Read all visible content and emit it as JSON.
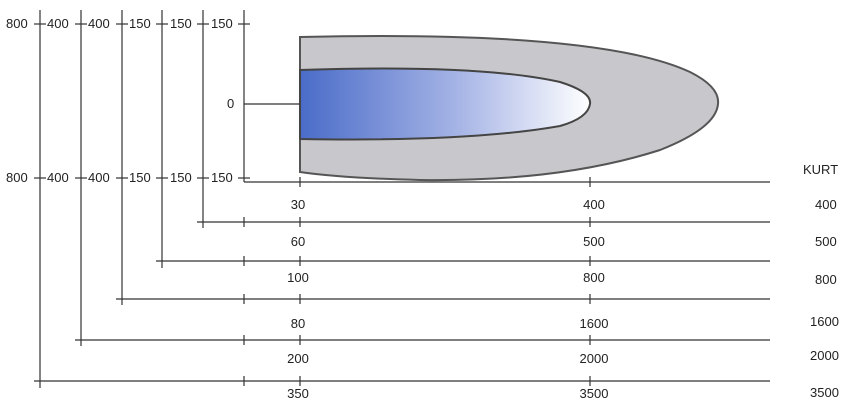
{
  "diagram": {
    "colors": {
      "outer_fill": "#c8c8cc",
      "outline": "#555555",
      "inner_gradient_start": "#4a6cc8",
      "inner_gradient_end": "#ffffff",
      "line": "#333333"
    },
    "top_left_labels": [
      "800",
      "400",
      "400",
      "150",
      "150",
      "150"
    ],
    "mid_left_labels": [
      "800",
      "400",
      "400",
      "150",
      "150",
      "150"
    ],
    "center_label": "0",
    "header_label": "KURT",
    "rows": [
      {
        "near": "30",
        "far": "400",
        "kurt": "400"
      },
      {
        "near": "60",
        "far": "500",
        "kurt": "500"
      },
      {
        "near": "100",
        "far": "800",
        "kurt": "800"
      },
      {
        "near": "80",
        "far": "1600",
        "kurt": "1600"
      },
      {
        "near": "200",
        "far": "2000",
        "kurt": "2000"
      },
      {
        "near": "350",
        "far": "3500",
        "kurt": "3500"
      }
    ]
  }
}
